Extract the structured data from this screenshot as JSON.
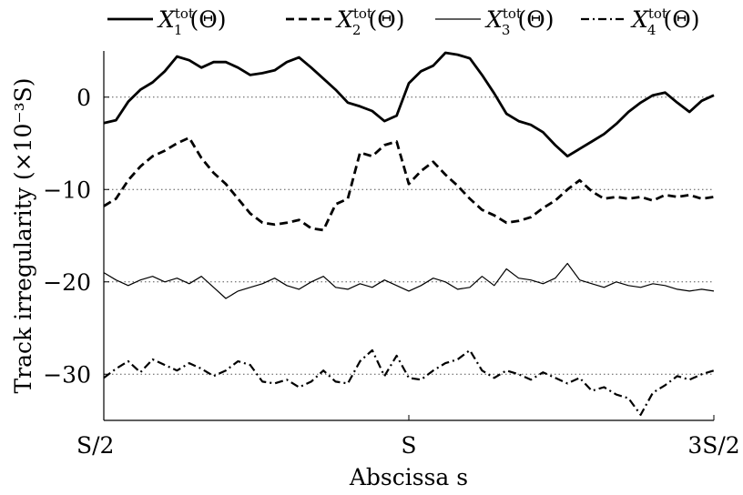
{
  "chart_data": {
    "type": "line",
    "title": "",
    "xlabel": "Abscissa s",
    "ylabel": "Track irregularity (×10⁻³S)",
    "x_ticks": [
      {
        "value": 0.5,
        "label": "S/2"
      },
      {
        "value": 1.0,
        "label": "S"
      },
      {
        "value": 1.5,
        "label": "3S/2"
      }
    ],
    "y_ticks": [
      0,
      -10,
      -20,
      -30
    ],
    "y_tick_labels": [
      "0",
      "−10",
      "−20",
      "−30"
    ],
    "xlim": [
      0.5,
      1.5
    ],
    "ylim": [
      -35,
      5
    ],
    "grid": "dotted horizontal at y ticks",
    "legend_position": "top",
    "x": [
      0.5,
      0.52,
      0.54,
      0.56,
      0.58,
      0.6,
      0.62,
      0.64,
      0.66,
      0.68,
      0.7,
      0.72,
      0.74,
      0.76,
      0.78,
      0.8,
      0.82,
      0.84,
      0.86,
      0.88,
      0.9,
      0.92,
      0.94,
      0.96,
      0.98,
      1.0,
      1.02,
      1.04,
      1.06,
      1.08,
      1.1,
      1.12,
      1.14,
      1.16,
      1.18,
      1.2,
      1.22,
      1.24,
      1.26,
      1.28,
      1.3,
      1.32,
      1.34,
      1.36,
      1.38,
      1.4,
      1.42,
      1.44,
      1.46,
      1.48,
      1.5
    ],
    "series": [
      {
        "name": "X₁tot(Θ)",
        "style": "solid-thick",
        "values": [
          -2.8,
          -2.5,
          -0.5,
          0.8,
          1.6,
          2.8,
          4.4,
          4.0,
          3.2,
          3.8,
          3.8,
          3.2,
          2.4,
          2.6,
          2.9,
          3.8,
          4.3,
          3.2,
          2.0,
          0.8,
          -0.6,
          -1.0,
          -1.5,
          -2.6,
          -2.0,
          1.5,
          2.8,
          3.4,
          4.8,
          4.6,
          4.2,
          2.4,
          0.4,
          -1.8,
          -2.6,
          -3.0,
          -3.8,
          -5.2,
          -6.4,
          -5.6,
          -4.8,
          -4.0,
          -2.9,
          -1.6,
          -0.6,
          0.2,
          0.5,
          -0.6,
          -1.6,
          -0.4,
          0.2
        ]
      },
      {
        "name": "X₂tot(Θ)",
        "style": "dashed-thick",
        "values": [
          -11.8,
          -11.0,
          -9.0,
          -7.5,
          -6.4,
          -5.8,
          -5.0,
          -4.4,
          -6.6,
          -8.2,
          -9.4,
          -11.0,
          -12.6,
          -13.6,
          -13.8,
          -13.6,
          -13.3,
          -14.2,
          -14.4,
          -11.6,
          -11.0,
          -6.0,
          -6.4,
          -5.2,
          -4.8,
          -9.4,
          -8.0,
          -7.0,
          -8.4,
          -9.6,
          -11.0,
          -12.2,
          -12.8,
          -13.6,
          -13.4,
          -13.0,
          -12.0,
          -11.2,
          -10.0,
          -9.0,
          -10.2,
          -11.0,
          -10.8,
          -11.0,
          -10.8,
          -11.2,
          -10.6,
          -10.8,
          -10.6,
          -11.0,
          -10.8
        ]
      },
      {
        "name": "X₃tot(Θ)",
        "style": "solid-thin",
        "values": [
          -19.0,
          -19.8,
          -20.4,
          -19.8,
          -19.4,
          -20.0,
          -19.6,
          -20.2,
          -19.4,
          -20.6,
          -21.8,
          -21.0,
          -20.6,
          -20.2,
          -19.6,
          -20.4,
          -20.8,
          -20.0,
          -19.4,
          -20.6,
          -20.8,
          -20.2,
          -20.6,
          -19.8,
          -20.4,
          -21.0,
          -20.4,
          -19.6,
          -20.0,
          -20.8,
          -20.6,
          -19.4,
          -20.4,
          -18.6,
          -19.6,
          -19.8,
          -20.2,
          -19.6,
          -18.0,
          -19.8,
          -20.2,
          -20.6,
          -20.0,
          -20.4,
          -20.6,
          -20.2,
          -20.4,
          -20.8,
          -21.0,
          -20.8,
          -21.0
        ]
      },
      {
        "name": "X₄tot(Θ)",
        "style": "dashdot-thick",
        "values": [
          -30.4,
          -29.4,
          -28.6,
          -29.8,
          -28.4,
          -29.0,
          -29.6,
          -28.8,
          -29.4,
          -30.2,
          -29.6,
          -28.6,
          -29.0,
          -30.8,
          -31.0,
          -30.6,
          -31.4,
          -30.8,
          -29.6,
          -30.8,
          -31.0,
          -28.6,
          -27.4,
          -30.2,
          -28.0,
          -30.4,
          -30.6,
          -29.6,
          -28.8,
          -28.4,
          -27.4,
          -29.6,
          -30.4,
          -29.6,
          -30.0,
          -30.6,
          -29.8,
          -30.4,
          -31.0,
          -30.4,
          -31.8,
          -31.4,
          -32.2,
          -32.6,
          -34.4,
          -32.0,
          -31.2,
          -30.2,
          -30.6,
          -30.0,
          -29.6
        ]
      }
    ]
  }
}
